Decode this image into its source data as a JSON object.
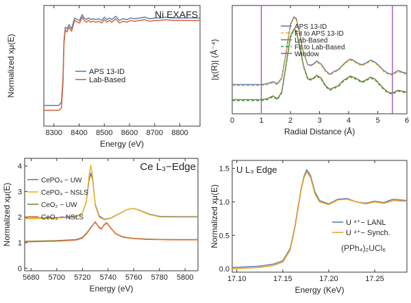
{
  "chart_data": [
    {
      "type": "line",
      "panel": "Ni EXAFS",
      "title": "Ni EXAFS",
      "xlabel": "Energy (eV)",
      "ylabel": "Normalized xμ(E)",
      "xlim": [
        8260,
        8880
      ],
      "ylim": [
        -0.25,
        1.2
      ],
      "xticks": [
        8300,
        8400,
        8500,
        8600,
        8700,
        8800
      ],
      "yticks": [],
      "grid": false,
      "legend_position": "center-left",
      "series": [
        {
          "name": "APS 13-ID",
          "color": "#5b7fb0",
          "x": [
            8260,
            8320,
            8330,
            8336,
            8340,
            8345,
            8352,
            8360,
            8370,
            8382,
            8393,
            8402,
            8412,
            8420,
            8428,
            8438,
            8446,
            8455,
            8465,
            8478,
            8490,
            8500,
            8510,
            8520,
            8530,
            8545,
            8560,
            8575,
            8590,
            8605,
            8620,
            8640,
            8660,
            8680,
            8700,
            8720,
            8745,
            8770,
            8800,
            8840,
            8880
          ],
          "y": [
            0.0,
            0.0,
            0.04,
            0.32,
            0.78,
            0.94,
            0.92,
            0.97,
            0.92,
            1.05,
            1.03,
            1.02,
            1.09,
            1.05,
            1.03,
            1.05,
            1.03,
            1.04,
            1.03,
            1.04,
            1.02,
            1.06,
            1.03,
            1.05,
            1.03,
            1.07,
            1.02,
            1.04,
            1.03,
            1.05,
            1.04,
            1.05,
            1.06,
            1.04,
            1.05,
            1.05,
            1.06,
            1.05,
            1.05,
            1.05,
            1.05
          ]
        },
        {
          "name": "Lab-Based",
          "color": "#d9623b",
          "x": [
            8260,
            8320,
            8330,
            8336,
            8340,
            8345,
            8352,
            8360,
            8370,
            8382,
            8393,
            8402,
            8412,
            8420,
            8428,
            8438,
            8446,
            8455,
            8465,
            8478,
            8490,
            8500,
            8510,
            8520,
            8530,
            8545,
            8560,
            8575,
            8590,
            8605,
            8620,
            8640,
            8660,
            8680,
            8700,
            8720,
            8745,
            8770,
            8800,
            8840,
            8880
          ],
          "y": [
            -0.06,
            -0.06,
            -0.03,
            0.26,
            0.74,
            0.91,
            0.88,
            0.94,
            0.89,
            1.02,
            1.0,
            0.99,
            1.06,
            1.02,
            1.0,
            1.02,
            1.0,
            1.01,
            1.0,
            1.01,
            0.99,
            1.03,
            1.0,
            1.02,
            1.0,
            1.04,
            0.99,
            1.01,
            1.0,
            1.02,
            1.01,
            1.02,
            1.03,
            1.01,
            1.02,
            1.02,
            1.03,
            1.02,
            1.02,
            1.02,
            1.02
          ]
        }
      ]
    },
    {
      "type": "line",
      "panel": "Fourier transform",
      "title": "",
      "xlabel": "Radial Distance (Å)",
      "ylabel": "|χ(R)| (Å⁻⁴)",
      "xlim": [
        0,
        6
      ],
      "ylim": [
        -0.1,
        1.05
      ],
      "xticks": [
        0,
        1,
        2,
        3,
        4,
        5,
        6
      ],
      "yticks": [],
      "grid": false,
      "legend_position": "top-right",
      "series": [
        {
          "name": "APS 13-ID",
          "color": "#5b7fb0",
          "dash": "solid",
          "x": [
            0,
            0.5,
            1.0,
            1.2,
            1.4,
            1.55,
            1.7,
            1.85,
            2.0,
            2.12,
            2.2,
            2.3,
            2.45,
            2.6,
            2.75,
            2.9,
            3.05,
            3.2,
            3.35,
            3.5,
            3.65,
            3.8,
            3.95,
            4.05,
            4.15,
            4.3,
            4.45,
            4.6,
            4.75,
            4.9,
            5.05,
            5.2,
            5.35,
            5.5,
            5.7,
            5.85,
            6.0
          ],
          "y": [
            0.21,
            0.21,
            0.21,
            0.22,
            0.24,
            0.22,
            0.28,
            0.55,
            0.85,
            0.93,
            0.91,
            0.78,
            0.55,
            0.42,
            0.42,
            0.46,
            0.43,
            0.36,
            0.32,
            0.35,
            0.37,
            0.42,
            0.46,
            0.48,
            0.47,
            0.44,
            0.42,
            0.44,
            0.47,
            0.45,
            0.41,
            0.36,
            0.33,
            0.32,
            0.36,
            0.34,
            0.33
          ]
        },
        {
          "name": "Fit to APS 13-ID",
          "color": "#f5a623",
          "dash": "dashed",
          "x": [
            0,
            0.5,
            1.0,
            1.2,
            1.4,
            1.55,
            1.7,
            1.85,
            2.0,
            2.12,
            2.2,
            2.3,
            2.45,
            2.6,
            2.75,
            2.9,
            3.05,
            3.2,
            3.35,
            3.5,
            3.65,
            3.8,
            3.95,
            4.05,
            4.15,
            4.3,
            4.45,
            4.6,
            4.75,
            4.9,
            5.05,
            5.2,
            5.35,
            5.5,
            5.7,
            5.85,
            6.0
          ],
          "y": [
            0.2,
            0.2,
            0.2,
            0.21,
            0.23,
            0.21,
            0.27,
            0.54,
            0.84,
            0.92,
            0.9,
            0.77,
            0.54,
            0.41,
            0.41,
            0.45,
            0.42,
            0.35,
            0.31,
            0.34,
            0.36,
            0.41,
            0.45,
            0.47,
            0.46,
            0.43,
            0.41,
            0.43,
            0.46,
            0.44,
            0.4,
            0.35,
            0.32,
            0.31,
            0.35,
            0.33,
            0.32
          ]
        },
        {
          "name": "Lab-Based",
          "color": "#8b7d3a",
          "dash": "solid",
          "x": [
            0,
            0.5,
            1.0,
            1.2,
            1.4,
            1.55,
            1.7,
            1.85,
            2.0,
            2.12,
            2.2,
            2.3,
            2.45,
            2.6,
            2.75,
            2.9,
            3.05,
            3.2,
            3.35,
            3.5,
            3.65,
            3.8,
            3.95,
            4.05,
            4.15,
            4.3,
            4.45,
            4.6,
            4.75,
            4.9,
            5.05,
            5.2,
            5.35,
            5.5,
            5.7,
            5.85,
            6.0
          ],
          "y": [
            0.05,
            0.05,
            0.05,
            0.06,
            0.09,
            0.06,
            0.13,
            0.42,
            0.72,
            0.8,
            0.78,
            0.64,
            0.41,
            0.27,
            0.27,
            0.31,
            0.28,
            0.2,
            0.16,
            0.18,
            0.2,
            0.25,
            0.28,
            0.3,
            0.29,
            0.27,
            0.24,
            0.26,
            0.29,
            0.27,
            0.22,
            0.17,
            0.13,
            0.12,
            0.15,
            0.14,
            0.13
          ]
        },
        {
          "name": "Fit to Lab-Based",
          "color": "#3fa34d",
          "dash": "dashed",
          "x": [
            0,
            0.5,
            1.0,
            1.2,
            1.4,
            1.55,
            1.7,
            1.85,
            2.0,
            2.12,
            2.2,
            2.3,
            2.45,
            2.6,
            2.75,
            2.9,
            3.05,
            3.2,
            3.35,
            3.5,
            3.65,
            3.8,
            3.95,
            4.05,
            4.15,
            4.3,
            4.45,
            4.6,
            4.75,
            4.9,
            5.05,
            5.2,
            5.35,
            5.5,
            5.7,
            5.85,
            6.0
          ],
          "y": [
            0.04,
            0.04,
            0.04,
            0.05,
            0.08,
            0.05,
            0.12,
            0.41,
            0.71,
            0.79,
            0.77,
            0.63,
            0.4,
            0.26,
            0.26,
            0.3,
            0.27,
            0.19,
            0.15,
            0.17,
            0.19,
            0.24,
            0.27,
            0.29,
            0.28,
            0.26,
            0.23,
            0.25,
            0.28,
            0.26,
            0.21,
            0.16,
            0.12,
            0.11,
            0.14,
            0.13,
            0.12
          ]
        },
        {
          "name": "Window",
          "color": "#9b59b6",
          "dash": "solid",
          "step": true,
          "x": [
            1.0,
            1.0,
            5.5,
            5.5
          ],
          "y": [
            -0.1,
            1.05,
            1.05,
            -0.1
          ]
        }
      ]
    },
    {
      "type": "line",
      "panel": "Ce L3-Edge",
      "title": "Ce L₃−Edge",
      "xlabel": "Energy (eV)",
      "ylabel": "Normalized xμ(E)",
      "xlim": [
        5675,
        5810
      ],
      "ylim": [
        -0.1,
        4.3
      ],
      "xticks": [
        5680,
        5700,
        5720,
        5740,
        5760,
        5780,
        5800
      ],
      "yticks": [
        0,
        1,
        2,
        3,
        4
      ],
      "grid": false,
      "legend_position": "center-left",
      "series": [
        {
          "name": "CePO₄ − UW",
          "color": "#5b7fb0",
          "x": [
            5675,
            5700,
            5715,
            5720,
            5723,
            5725,
            5726.5,
            5728,
            5730,
            5733,
            5737,
            5742,
            5748,
            5755,
            5760,
            5765,
            5772,
            5780,
            5790,
            5800,
            5810
          ],
          "y": [
            1.96,
            1.98,
            2.03,
            2.15,
            2.6,
            3.4,
            3.72,
            3.45,
            2.5,
            2.05,
            1.92,
            1.96,
            2.12,
            2.3,
            2.34,
            2.26,
            2.12,
            2.03,
            2.02,
            2.02,
            2.02
          ]
        },
        {
          "name": "CePO₄ − NSLS",
          "color": "#f0b323",
          "x": [
            5675,
            5700,
            5715,
            5720,
            5723,
            5725,
            5726.5,
            5728,
            5730,
            5733,
            5737,
            5742,
            5748,
            5755,
            5760,
            5765,
            5772,
            5780,
            5790,
            5800,
            5810
          ],
          "y": [
            1.94,
            1.96,
            2.01,
            2.14,
            2.62,
            3.55,
            4.03,
            3.55,
            2.45,
            2.0,
            1.9,
            1.95,
            2.11,
            2.3,
            2.34,
            2.25,
            2.1,
            2.01,
            2.0,
            2.0,
            2.0
          ]
        },
        {
          "name": "CeO₂ − UW",
          "color": "#6e8c3a",
          "x": [
            5675,
            5700,
            5715,
            5720,
            5724,
            5727,
            5730,
            5733,
            5735,
            5737,
            5739,
            5742,
            5746,
            5752,
            5760,
            5770,
            5780,
            5790,
            5800,
            5810
          ],
          "y": [
            1.05,
            1.08,
            1.12,
            1.2,
            1.42,
            1.63,
            1.8,
            1.6,
            1.55,
            1.7,
            1.76,
            1.58,
            1.35,
            1.22,
            1.17,
            1.14,
            1.13,
            1.12,
            1.12,
            1.12
          ]
        },
        {
          "name": "CeO₂ − NSLS",
          "color": "#e0703c",
          "x": [
            5675,
            5700,
            5715,
            5720,
            5724,
            5727,
            5730,
            5733,
            5735,
            5737,
            5739,
            5742,
            5746,
            5752,
            5760,
            5770,
            5780,
            5790,
            5800,
            5810
          ],
          "y": [
            1.03,
            1.06,
            1.1,
            1.18,
            1.4,
            1.62,
            1.82,
            1.58,
            1.53,
            1.72,
            1.78,
            1.57,
            1.34,
            1.21,
            1.16,
            1.13,
            1.12,
            1.11,
            1.11,
            1.11
          ]
        }
      ]
    },
    {
      "type": "line",
      "panel": "U L3 Edge",
      "title": "U L₃ Edge",
      "xlabel": "Energy (KeV)",
      "ylabel": "Normalized xμ(E)",
      "xlim": [
        17.095,
        17.285
      ],
      "ylim": [
        -0.05,
        1.62
      ],
      "xticks": [
        17.1,
        17.15,
        17.2,
        17.25
      ],
      "xtick_labels": [
        "17.10",
        "17.15",
        "17.20",
        "17.25"
      ],
      "yticks": [
        0.0,
        0.5,
        1.0,
        1.5
      ],
      "ytick_labels": [
        "0.0",
        "0.5",
        "1.0",
        "1.5"
      ],
      "grid": false,
      "legend_position": "bottom-right",
      "annotation": "(PPh₄)₂UCl₆",
      "series": [
        {
          "name": "U ⁴⁺− LANL",
          "color": "#5b7fb0",
          "x": [
            17.095,
            17.11,
            17.125,
            17.14,
            17.15,
            17.158,
            17.163,
            17.167,
            17.17,
            17.173,
            17.176,
            17.18,
            17.185,
            17.19,
            17.2,
            17.21,
            17.22,
            17.23,
            17.24,
            17.25,
            17.26,
            17.27,
            17.285
          ],
          "y": [
            0.02,
            0.03,
            0.04,
            0.07,
            0.12,
            0.3,
            0.62,
            0.95,
            1.2,
            1.38,
            1.48,
            1.4,
            1.15,
            1.02,
            0.97,
            1.04,
            1.05,
            1.0,
            0.98,
            1.01,
            0.99,
            1.04,
            1.02
          ]
        },
        {
          "name": "U ⁴⁺− Synch.",
          "color": "#f0a020",
          "x": [
            17.095,
            17.11,
            17.125,
            17.14,
            17.15,
            17.158,
            17.163,
            17.167,
            17.17,
            17.173,
            17.176,
            17.18,
            17.185,
            17.19,
            17.2,
            17.21,
            17.22,
            17.23,
            17.24,
            17.25,
            17.26,
            17.27,
            17.285
          ],
          "y": [
            0.0,
            0.01,
            0.02,
            0.05,
            0.1,
            0.28,
            0.6,
            0.92,
            1.18,
            1.36,
            1.45,
            1.37,
            1.12,
            1.0,
            0.96,
            1.03,
            1.04,
            1.0,
            0.97,
            1.0,
            0.98,
            1.02,
            1.01
          ]
        }
      ]
    }
  ]
}
